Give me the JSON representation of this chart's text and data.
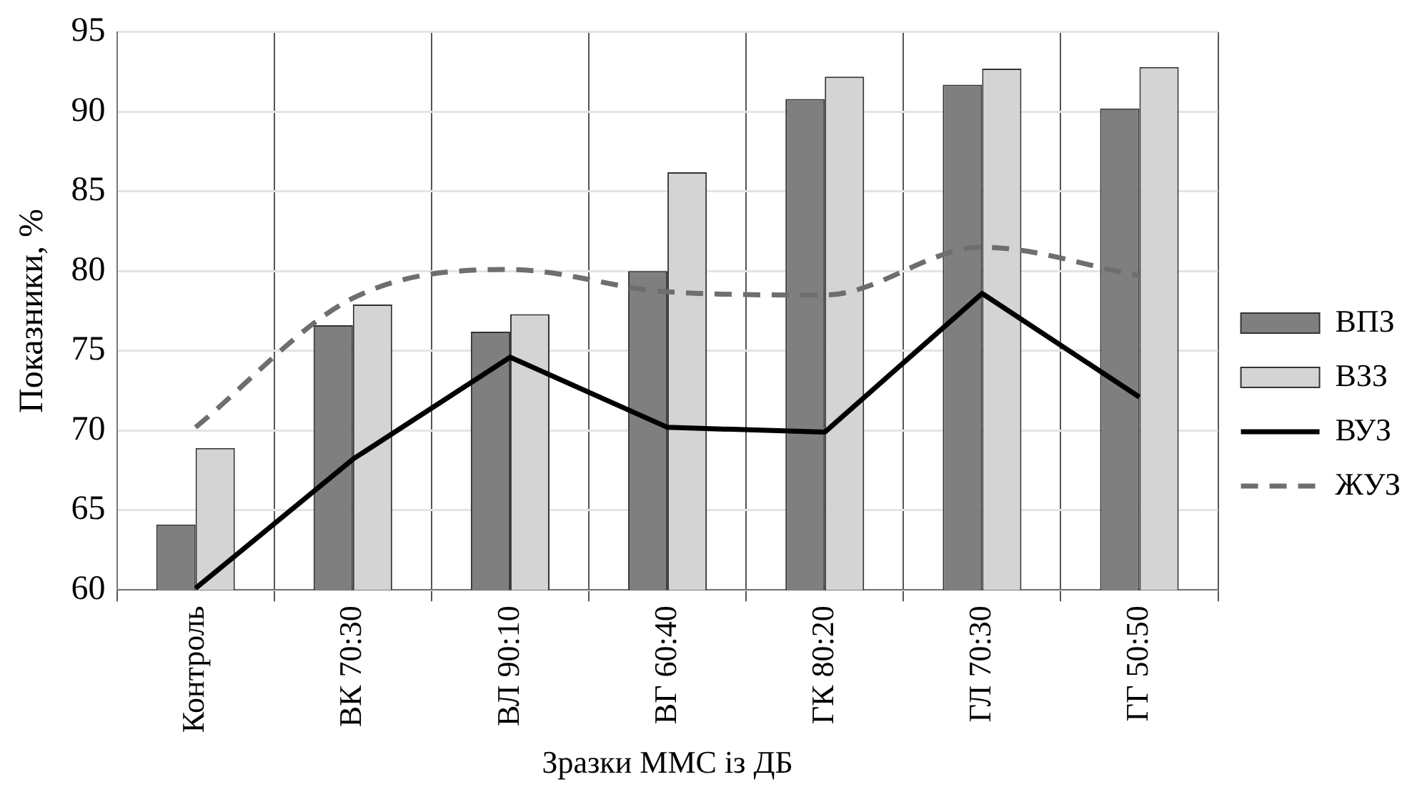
{
  "chart_data": {
    "type": "bar",
    "xlabel": "Зразки ММС із ДБ",
    "ylabel": "Показники, %",
    "categories": [
      "Контроль",
      "ВК 70:30",
      "ВЛ 90:10",
      "ВГ 60:40",
      "ГК 80:20",
      "ГЛ 70:30",
      "ГГ 50:50"
    ],
    "series": [
      {
        "name": "ВПЗ",
        "type": "bar",
        "color": "#7f7f7f",
        "values": [
          64.1,
          76.6,
          76.2,
          80.0,
          90.8,
          91.7,
          90.2
        ]
      },
      {
        "name": "ВЗЗ",
        "type": "bar",
        "color": "#d4d4d4",
        "values": [
          68.9,
          77.9,
          77.3,
          86.2,
          92.2,
          92.7,
          92.8
        ]
      },
      {
        "name": "ВУЗ",
        "type": "line",
        "color": "#000000",
        "line_style": "solid",
        "values": [
          60.1,
          68.2,
          74.6,
          70.2,
          69.9,
          78.6,
          72.1
        ]
      },
      {
        "name": "ЖУЗ",
        "type": "line",
        "color": "#6e6e6e",
        "line_style": "dashed",
        "values": [
          70.2,
          78.3,
          80.1,
          78.7,
          78.5,
          81.5,
          79.7
        ]
      }
    ],
    "ylim": [
      60,
      95
    ],
    "yticks": [
      60,
      65,
      70,
      75,
      80,
      85,
      90,
      95
    ],
    "grid": true,
    "legend": "right",
    "marker": "none"
  }
}
